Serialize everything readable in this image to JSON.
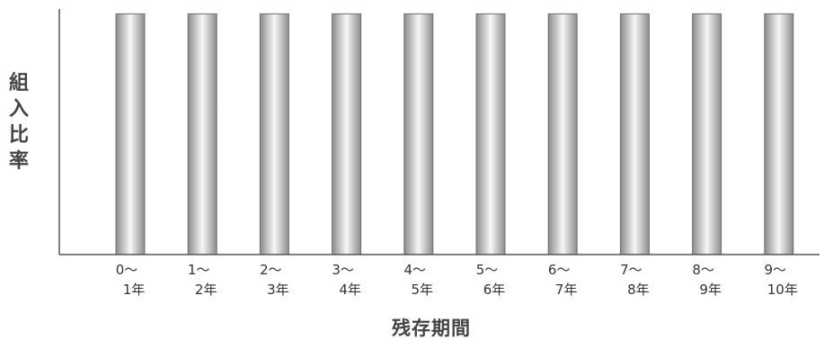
{
  "chart_data": {
    "type": "bar",
    "xlabel": "残存期間",
    "ylabel": "組入比率",
    "categories": [
      {
        "line1": "0～",
        "line2": "1年"
      },
      {
        "line1": "1～",
        "line2": "2年"
      },
      {
        "line1": "2～",
        "line2": "3年"
      },
      {
        "line1": "3～",
        "line2": "4年"
      },
      {
        "line1": "4～",
        "line2": "5年"
      },
      {
        "line1": "5～",
        "line2": "6年"
      },
      {
        "line1": "6～",
        "line2": "7年"
      },
      {
        "line1": "7～",
        "line2": "8年"
      },
      {
        "line1": "8～",
        "line2": "9年"
      },
      {
        "line1": "9～",
        "line2": "10年"
      }
    ],
    "values": [
      1,
      1,
      1,
      1,
      1,
      1,
      1,
      1,
      1,
      1
    ],
    "ylim": [
      0,
      1.02
    ],
    "yaxis_ticks_shown": false,
    "grid": false,
    "legend": "none",
    "colors": {
      "bar_dark": "#8c8c8c",
      "bar_light": "#f7f7f7",
      "bar_edge": "#6f6f6f",
      "axis": "#555555"
    }
  }
}
